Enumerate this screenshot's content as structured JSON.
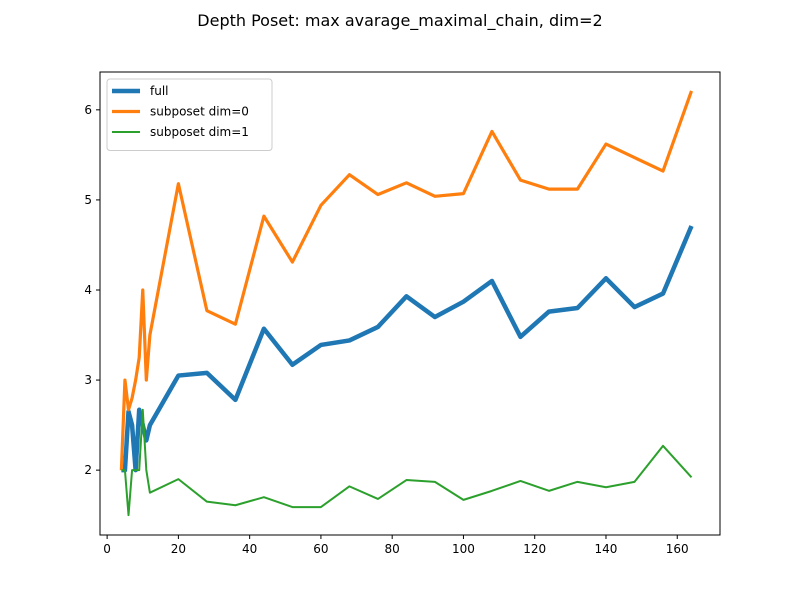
{
  "chart_data": {
    "type": "line",
    "title": "Depth Poset: max avarage_maximal_chain, dim=2",
    "xlabel": "",
    "ylabel": "",
    "xlim": [
      -2.0,
      172.0
    ],
    "ylim": [
      1.28,
      6.42
    ],
    "xticks": [
      0,
      20,
      40,
      60,
      80,
      100,
      120,
      140,
      160
    ],
    "yticks": [
      2,
      3,
      4,
      5,
      6
    ],
    "grid": false,
    "legend": {
      "placement": "top-left"
    },
    "x": [
      4,
      5,
      6,
      7,
      8,
      9,
      10,
      11,
      12,
      20,
      28,
      36,
      44,
      52,
      60,
      68,
      76,
      84,
      92,
      100,
      108,
      116,
      124,
      132,
      140,
      148,
      156,
      164
    ],
    "series": [
      {
        "name": "full",
        "color": "#1f77b4",
        "width": "thick",
        "values": [
          2.0,
          2.0,
          2.65,
          2.5,
          2.0,
          2.67,
          2.5,
          2.33,
          2.5,
          3.05,
          3.08,
          2.78,
          3.57,
          3.17,
          3.39,
          3.44,
          3.59,
          3.93,
          3.7,
          3.87,
          4.1,
          3.48,
          3.76,
          3.8,
          4.13,
          3.81,
          3.96,
          4.71
        ]
      },
      {
        "name": "subposet dim=0",
        "color": "#ff7f0e",
        "width": "medium",
        "values": [
          2.0,
          3.0,
          2.67,
          2.8,
          3.0,
          3.25,
          4.0,
          3.0,
          3.5,
          5.18,
          3.77,
          3.62,
          4.82,
          4.31,
          4.94,
          5.28,
          5.06,
          5.19,
          5.04,
          5.07,
          5.76,
          5.22,
          5.12,
          5.12,
          5.62,
          5.47,
          5.32,
          6.21
        ]
      },
      {
        "name": "subposet dim=1",
        "color": "#2ca02c",
        "width": "thin",
        "values": [
          2.0,
          2.0,
          1.5,
          2.0,
          2.0,
          2.0,
          2.67,
          2.0,
          1.75,
          1.9,
          1.65,
          1.61,
          1.7,
          1.59,
          1.59,
          1.82,
          1.68,
          1.89,
          1.87,
          1.67,
          1.77,
          1.88,
          1.77,
          1.87,
          1.81,
          1.87,
          2.27,
          1.92
        ]
      }
    ]
  }
}
